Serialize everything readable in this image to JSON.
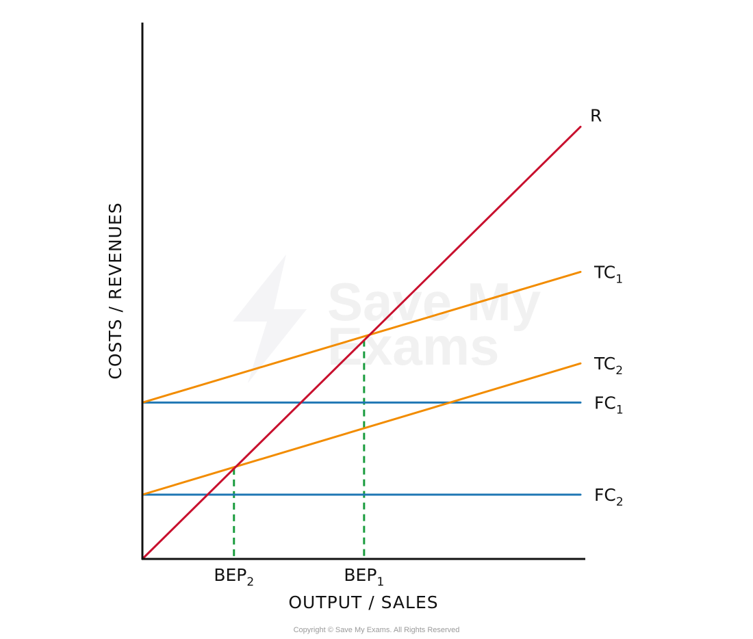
{
  "chart_data": {
    "type": "line",
    "xlabel": "OUTPUT / SALES",
    "ylabel": "COSTS / REVENUES",
    "xlim": [
      0,
      100
    ],
    "ylim": [
      0,
      100
    ],
    "grid": false,
    "series": [
      {
        "name": "R",
        "name_main": "R",
        "name_sub": "",
        "color": "#c8102e",
        "x": [
          0,
          100
        ],
        "y": [
          0,
          84
        ]
      },
      {
        "name": "TC1",
        "name_main": "TC",
        "name_sub": "1",
        "color": "#f28c00",
        "x": [
          0,
          100
        ],
        "y": [
          30.4,
          55.8
        ]
      },
      {
        "name": "TC2",
        "name_main": "TC",
        "name_sub": "2",
        "color": "#f28c00",
        "x": [
          0,
          100
        ],
        "y": [
          12.5,
          38
        ]
      },
      {
        "name": "FC1",
        "name_main": "FC",
        "name_sub": "1",
        "color": "#1f77b4",
        "x": [
          0,
          100
        ],
        "y": [
          30.4,
          30.4
        ]
      },
      {
        "name": "FC2",
        "name_main": "FC",
        "name_sub": "2",
        "color": "#1f77b4",
        "x": [
          0,
          100
        ],
        "y": [
          12.5,
          12.5
        ]
      }
    ],
    "break_even_points": [
      {
        "name": "BEP1",
        "label_main": "BEP",
        "label_sub": "1",
        "x": 50.6,
        "y": 42.6,
        "color": "#1a9c3e"
      },
      {
        "name": "BEP2",
        "label_main": "BEP",
        "label_sub": "2",
        "x": 20.9,
        "y": 17.7,
        "color": "#1a9c3e"
      }
    ]
  },
  "watermark": {
    "line1": "Save My",
    "line2": "Exams"
  },
  "copyright": "Copyright © Save My Exams. All Rights Reserved"
}
